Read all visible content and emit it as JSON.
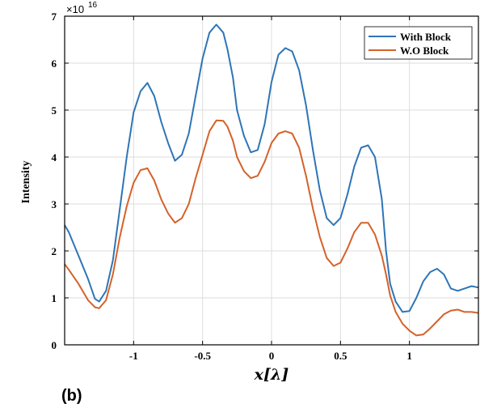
{
  "panel_label": "(b)",
  "chart_data": {
    "type": "line",
    "xlabel": "x[λ]",
    "ylabel": "Intensity",
    "y_multiplier": "×10",
    "y_multiplier_exp": "16",
    "xlim": [
      -1.5,
      1.5
    ],
    "ylim": [
      0,
      7
    ],
    "xticks": [
      -1,
      -0.5,
      0,
      0.5,
      1
    ],
    "xtick_labels": [
      "-1",
      "-0.5",
      "0",
      "0.5",
      "1"
    ],
    "yticks": [
      0,
      1,
      2,
      3,
      4,
      5,
      6,
      7
    ],
    "ytick_labels": [
      "0",
      "1",
      "2",
      "3",
      "4",
      "5",
      "6",
      "7"
    ],
    "grid": true,
    "legend_position": "top-right",
    "series": [
      {
        "name": "With Block",
        "color": "#2e75b6",
        "x": [
          -1.5,
          -1.47,
          -1.4,
          -1.33,
          -1.28,
          -1.25,
          -1.2,
          -1.15,
          -1.1,
          -1.05,
          -1.0,
          -0.95,
          -0.9,
          -0.85,
          -0.8,
          -0.75,
          -0.7,
          -0.65,
          -0.6,
          -0.55,
          -0.5,
          -0.45,
          -0.4,
          -0.35,
          -0.32,
          -0.28,
          -0.25,
          -0.2,
          -0.15,
          -0.1,
          -0.05,
          0.0,
          0.05,
          0.1,
          0.15,
          0.2,
          0.25,
          0.3,
          0.35,
          0.4,
          0.45,
          0.5,
          0.55,
          0.6,
          0.65,
          0.7,
          0.75,
          0.8,
          0.83,
          0.86,
          0.9,
          0.95,
          1.0,
          1.05,
          1.1,
          1.15,
          1.2,
          1.25,
          1.3,
          1.35,
          1.4,
          1.45,
          1.5
        ],
        "y": [
          2.55,
          2.4,
          1.9,
          1.4,
          0.98,
          0.92,
          1.15,
          1.8,
          2.9,
          4.0,
          4.95,
          5.4,
          5.58,
          5.3,
          4.75,
          4.3,
          3.92,
          4.05,
          4.5,
          5.3,
          6.1,
          6.65,
          6.82,
          6.65,
          6.3,
          5.7,
          5.0,
          4.45,
          4.1,
          4.15,
          4.7,
          5.6,
          6.18,
          6.32,
          6.25,
          5.85,
          5.1,
          4.15,
          3.3,
          2.7,
          2.55,
          2.7,
          3.2,
          3.8,
          4.2,
          4.25,
          4.0,
          3.1,
          2.0,
          1.3,
          0.92,
          0.7,
          0.72,
          1.0,
          1.35,
          1.55,
          1.62,
          1.5,
          1.2,
          1.15,
          1.2,
          1.25,
          1.22
        ]
      },
      {
        "name": "W.O Block",
        "color": "#d4622a",
        "x": [
          -1.5,
          -1.47,
          -1.4,
          -1.33,
          -1.28,
          -1.25,
          -1.2,
          -1.15,
          -1.1,
          -1.05,
          -1.0,
          -0.95,
          -0.9,
          -0.85,
          -0.8,
          -0.75,
          -0.7,
          -0.65,
          -0.6,
          -0.55,
          -0.5,
          -0.45,
          -0.4,
          -0.35,
          -0.32,
          -0.28,
          -0.25,
          -0.2,
          -0.15,
          -0.1,
          -0.05,
          0.0,
          0.05,
          0.1,
          0.15,
          0.2,
          0.25,
          0.3,
          0.35,
          0.4,
          0.45,
          0.5,
          0.55,
          0.6,
          0.65,
          0.7,
          0.75,
          0.8,
          0.83,
          0.86,
          0.9,
          0.95,
          1.0,
          1.05,
          1.1,
          1.15,
          1.2,
          1.25,
          1.3,
          1.35,
          1.4,
          1.45,
          1.5
        ],
        "y": [
          1.72,
          1.6,
          1.3,
          0.95,
          0.8,
          0.78,
          0.95,
          1.5,
          2.3,
          2.95,
          3.45,
          3.72,
          3.76,
          3.5,
          3.1,
          2.8,
          2.6,
          2.7,
          3.0,
          3.55,
          4.05,
          4.55,
          4.78,
          4.77,
          4.65,
          4.35,
          4.0,
          3.7,
          3.55,
          3.6,
          3.9,
          4.3,
          4.5,
          4.55,
          4.5,
          4.2,
          3.6,
          2.9,
          2.3,
          1.85,
          1.68,
          1.75,
          2.05,
          2.4,
          2.6,
          2.6,
          2.35,
          1.9,
          1.5,
          1.05,
          0.7,
          0.45,
          0.3,
          0.2,
          0.22,
          0.35,
          0.5,
          0.65,
          0.73,
          0.75,
          0.7,
          0.7,
          0.68
        ]
      }
    ]
  }
}
